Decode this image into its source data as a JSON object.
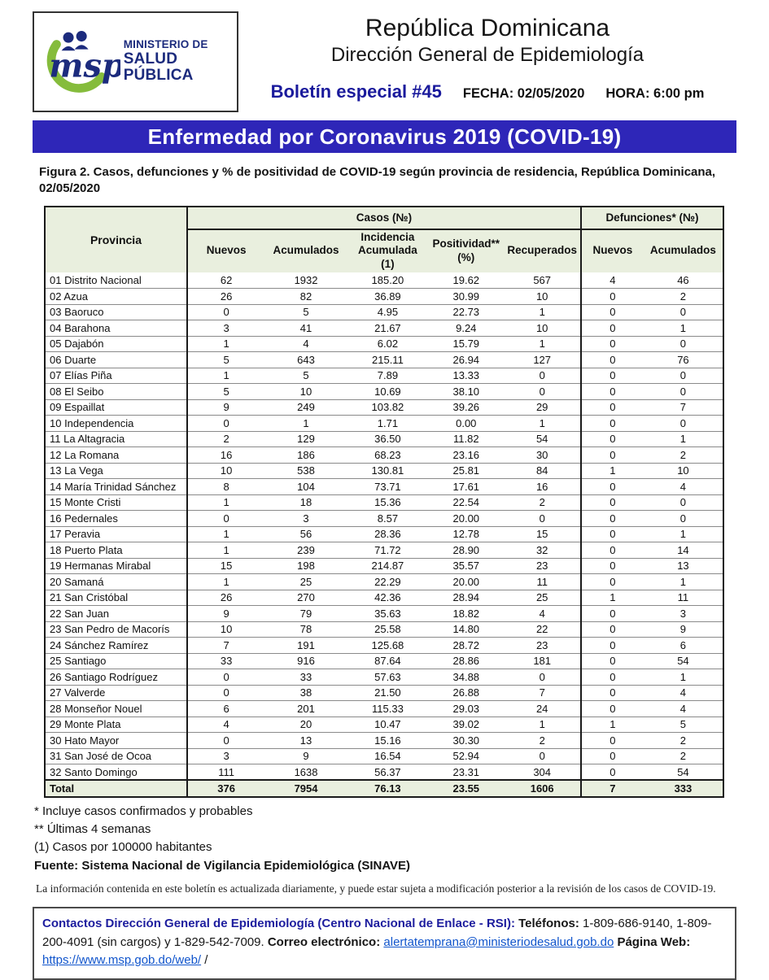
{
  "colors": {
    "banner_bg": "#2e26b8",
    "navy": "#1c2b7d",
    "logo_green": "#85bc3c",
    "header_row_bg": "#e9efde",
    "link_blue": "#1155cc"
  },
  "header": {
    "logo": {
      "msp": "msp",
      "ministry_line1": "MINISTERIO DE",
      "ministry_line2": "SALUD PÚBLICA"
    },
    "country": "República Dominicana",
    "department": "Dirección General de Epidemiología",
    "bulletin": "Boletín especial #45",
    "fecha": "FECHA: 02/05/2020",
    "hora": "HORA: 6:00 pm"
  },
  "banner": {
    "title": "Enfermedad por Coronavirus 2019 (COVID-19)"
  },
  "caption": "Figura 2. Casos, defunciones y % de positividad de COVID-19 según provincia de residencia, República Dominicana, 02/05/2020",
  "table": {
    "province_header": "Provincia",
    "group_headers": {
      "casos": "Casos (№)",
      "defunciones": "Defunciones* (№)"
    },
    "sub_headers": [
      "Nuevos",
      "Acumulados",
      "Incidencia Acumulada (1)",
      "Positividad** (%)",
      "Recuperados",
      "Nuevos",
      "Acumulados"
    ],
    "rows": [
      {
        "name": "01 Distrito Nacional",
        "values": [
          "62",
          "1932",
          "185.20",
          "19.62",
          "567",
          "4",
          "46"
        ]
      },
      {
        "name": "02 Azua",
        "values": [
          "26",
          "82",
          "36.89",
          "30.99",
          "10",
          "0",
          "2"
        ]
      },
      {
        "name": "03 Baoruco",
        "values": [
          "0",
          "5",
          "4.95",
          "22.73",
          "1",
          "0",
          "0"
        ]
      },
      {
        "name": "04 Barahona",
        "values": [
          "3",
          "41",
          "21.67",
          "9.24",
          "10",
          "0",
          "1"
        ]
      },
      {
        "name": "05 Dajabón",
        "values": [
          "1",
          "4",
          "6.02",
          "15.79",
          "1",
          "0",
          "0"
        ]
      },
      {
        "name": "06 Duarte",
        "values": [
          "5",
          "643",
          "215.11",
          "26.94",
          "127",
          "0",
          "76"
        ]
      },
      {
        "name": "07 Elías Piña",
        "values": [
          "1",
          "5",
          "7.89",
          "13.33",
          "0",
          "0",
          "0"
        ]
      },
      {
        "name": "08 El Seibo",
        "values": [
          "5",
          "10",
          "10.69",
          "38.10",
          "0",
          "0",
          "0"
        ]
      },
      {
        "name": "09 Espaillat",
        "values": [
          "9",
          "249",
          "103.82",
          "39.26",
          "29",
          "0",
          "7"
        ]
      },
      {
        "name": "10 Independencia",
        "values": [
          "0",
          "1",
          "1.71",
          "0.00",
          "1",
          "0",
          "0"
        ]
      },
      {
        "name": "11 La Altagracia",
        "values": [
          "2",
          "129",
          "36.50",
          "11.82",
          "54",
          "0",
          "1"
        ]
      },
      {
        "name": "12 La Romana",
        "values": [
          "16",
          "186",
          "68.23",
          "23.16",
          "30",
          "0",
          "2"
        ]
      },
      {
        "name": "13 La Vega",
        "values": [
          "10",
          "538",
          "130.81",
          "25.81",
          "84",
          "1",
          "10"
        ]
      },
      {
        "name": "14 María Trinidad Sánchez",
        "values": [
          "8",
          "104",
          "73.71",
          "17.61",
          "16",
          "0",
          "4"
        ]
      },
      {
        "name": "15 Monte Cristi",
        "values": [
          "1",
          "18",
          "15.36",
          "22.54",
          "2",
          "0",
          "0"
        ]
      },
      {
        "name": "16 Pedernales",
        "values": [
          "0",
          "3",
          "8.57",
          "20.00",
          "0",
          "0",
          "0"
        ]
      },
      {
        "name": "17 Peravia",
        "values": [
          "1",
          "56",
          "28.36",
          "12.78",
          "15",
          "0",
          "1"
        ]
      },
      {
        "name": "18 Puerto Plata",
        "values": [
          "1",
          "239",
          "71.72",
          "28.90",
          "32",
          "0",
          "14"
        ]
      },
      {
        "name": "19 Hermanas Mirabal",
        "values": [
          "15",
          "198",
          "214.87",
          "35.57",
          "23",
          "0",
          "13"
        ]
      },
      {
        "name": "20 Samaná",
        "values": [
          "1",
          "25",
          "22.29",
          "20.00",
          "11",
          "0",
          "1"
        ]
      },
      {
        "name": "21 San Cristóbal",
        "values": [
          "26",
          "270",
          "42.36",
          "28.94",
          "25",
          "1",
          "11"
        ]
      },
      {
        "name": "22 San Juan",
        "values": [
          "9",
          "79",
          "35.63",
          "18.82",
          "4",
          "0",
          "3"
        ]
      },
      {
        "name": "23 San Pedro de Macorís",
        "values": [
          "10",
          "78",
          "25.58",
          "14.80",
          "22",
          "0",
          "9"
        ]
      },
      {
        "name": "24 Sánchez Ramírez",
        "values": [
          "7",
          "191",
          "125.68",
          "28.72",
          "23",
          "0",
          "6"
        ]
      },
      {
        "name": "25 Santiago",
        "values": [
          "33",
          "916",
          "87.64",
          "28.86",
          "181",
          "0",
          "54"
        ]
      },
      {
        "name": "26 Santiago Rodríguez",
        "values": [
          "0",
          "33",
          "57.63",
          "34.88",
          "0",
          "0",
          "1"
        ]
      },
      {
        "name": "27 Valverde",
        "values": [
          "0",
          "38",
          "21.50",
          "26.88",
          "7",
          "0",
          "4"
        ]
      },
      {
        "name": "28 Monseñor Nouel",
        "values": [
          "6",
          "201",
          "115.33",
          "29.03",
          "24",
          "0",
          "4"
        ]
      },
      {
        "name": "29 Monte Plata",
        "values": [
          "4",
          "20",
          "10.47",
          "39.02",
          "1",
          "1",
          "5"
        ]
      },
      {
        "name": "30 Hato Mayor",
        "values": [
          "0",
          "13",
          "15.16",
          "30.30",
          "2",
          "0",
          "2"
        ]
      },
      {
        "name": "31 San José de Ocoa",
        "values": [
          "3",
          "9",
          "16.54",
          "52.94",
          "0",
          "0",
          "2"
        ]
      },
      {
        "name": "32 Santo Domingo",
        "values": [
          "111",
          "1638",
          "56.37",
          "23.31",
          "304",
          "0",
          "54"
        ]
      }
    ],
    "total": {
      "name": "Total",
      "values": [
        "376",
        "7954",
        "76.13",
        "23.55",
        "1606",
        "7",
        "333"
      ]
    }
  },
  "footnotes": {
    "n1": "* Incluye casos confirmados y probables",
    "n2": "** Últimas 4 semanas",
    "n3": "(1) Casos por 100000 habitantes",
    "fuente": "Fuente: Sistema Nacional de Vigilancia Epidemiológica (SINAVE)",
    "disclaimer": "La información contenida en este boletín es actualizada diariamente, y puede estar sujeta a modificación posterior a la revisión de los casos de COVID-19."
  },
  "contact": {
    "title": "Contactos Dirección General de Epidemiología (Centro Nacional de Enlace - RSI):",
    "phones_label": "Teléfonos:",
    "phones": "1-809-686-9140, 1-809-200-4091 (sin cargos) y 1-829-542-7009.",
    "email_label": "Correo electrónico:",
    "email": "alertatemprana@ministeriodesalud.gob.do",
    "web_label": "Página Web:",
    "web": "https://www.msp.gob.do/web/",
    "trailing": "/"
  }
}
